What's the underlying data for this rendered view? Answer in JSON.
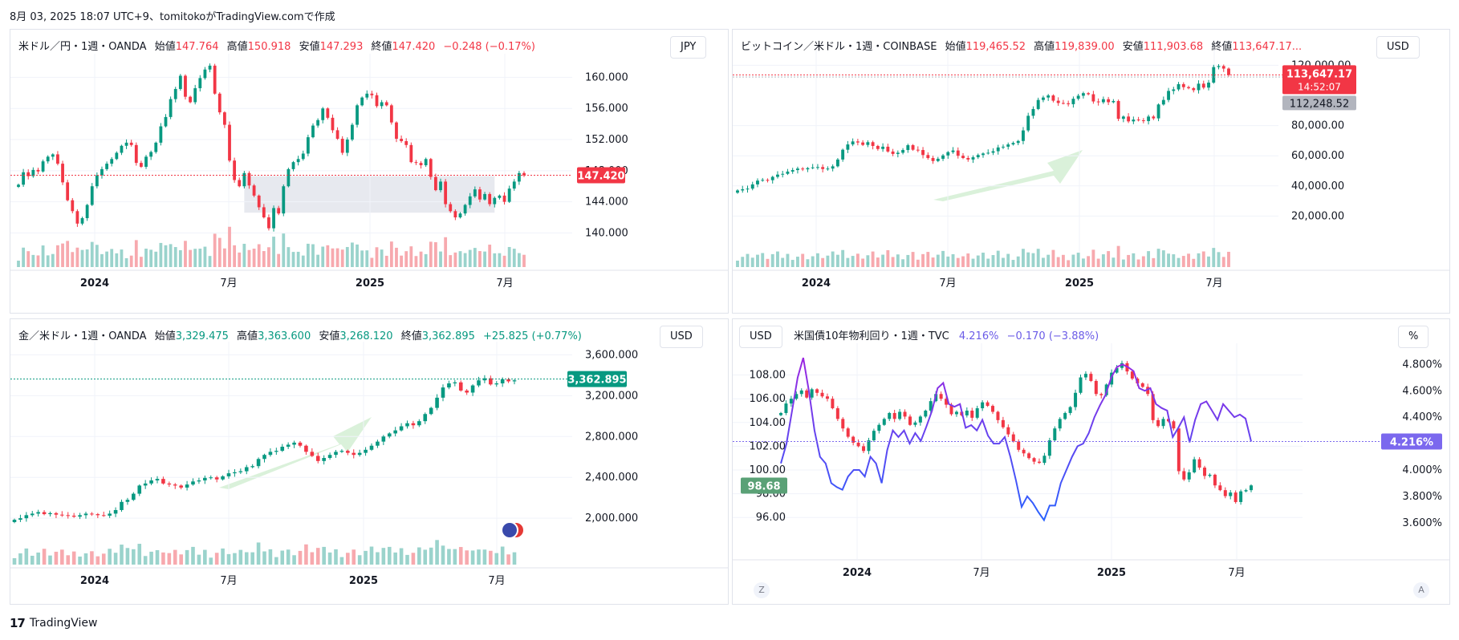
{
  "header": "8月 03, 2025 18:07 UTC+9、tomitokoがTradingView.comで作成",
  "footer": {
    "brand": "TradingView"
  },
  "panels": [
    {
      "id": "usdjpy",
      "title": "米ドル／円・1週・OANDA",
      "open_label": "始値",
      "open": "147.764",
      "high_label": "高値",
      "high": "150.918",
      "low_label": "安値",
      "low": "147.293",
      "close_label": "終値",
      "close": "147.420",
      "change": "−0.248 (−0.17%)",
      "currency": "JPY",
      "last_tag": "147.420"
    },
    {
      "id": "btcusd",
      "title": "ビットコイン／米ドル・1週・COINBASE",
      "open_label": "始値",
      "open": "119,465.52",
      "high_label": "高値",
      "high": "119,839.00",
      "low_label": "安値",
      "low": "111,903.68",
      "close_label": "終値",
      "close": "113,647.17...",
      "change": "",
      "currency": "USD",
      "last_tag": "113,647.17",
      "countdown": "14:52:07",
      "ref_tag": "112,248.52"
    },
    {
      "id": "xauusd",
      "title": "金／米ドル・1週・OANDA",
      "open_label": "始値",
      "open": "3,329.475",
      "high_label": "高値",
      "high": "3,363.600",
      "low_label": "安値",
      "low": "3,268.120",
      "close_label": "終値",
      "close": "3,362.895",
      "change": "+25.825 (+0.77%)",
      "currency": "USD",
      "last_tag": "3,362.895"
    },
    {
      "id": "us10y",
      "title": "米国債10年物利回り・1週・TVC",
      "value": "4.216%",
      "change": "−0.170 (−3.88%)",
      "currency_left": "USD",
      "currency_right": "%",
      "last_tag": "4.216%",
      "left_tag": "98.68",
      "btn_left": "Z",
      "btn_right": "A"
    }
  ],
  "chart_data": [
    {
      "type": "candlestick",
      "title": "米ドル／円・1週・OANDA",
      "x_ticks": [
        "2024",
        "7月",
        "2025",
        "7月"
      ],
      "y_ticks": [
        "160.000",
        "156.000",
        "152.000",
        "148.000",
        "144.000",
        "140.000"
      ],
      "ylim": [
        138.5,
        162
      ],
      "close_series": [
        146.2,
        147.8,
        147.3,
        148.1,
        147.9,
        149.2,
        149.8,
        150.1,
        148.9,
        146.5,
        144.2,
        142.8,
        141.2,
        141.9,
        143.6,
        146.0,
        147.4,
        148.2,
        148.9,
        149.5,
        150.3,
        151.2,
        151.6,
        151.3,
        149.0,
        148.5,
        149.8,
        150.4,
        151.6,
        153.7,
        154.9,
        157.2,
        158.5,
        160.2,
        157.5,
        156.8,
        158.6,
        159.9,
        161.0,
        161.5,
        157.9,
        155.5,
        153.9,
        149.3,
        146.8,
        146.0,
        147.7,
        146.1,
        144.8,
        143.3,
        142.0,
        140.6,
        143.2,
        142.5,
        146.0,
        148.2,
        149.1,
        149.5,
        150.2,
        152.3,
        153.8,
        154.5,
        156.0,
        154.8,
        153.2,
        152.1,
        150.3,
        152.0,
        153.9,
        156.4,
        157.4,
        157.9,
        157.7,
        156.3,
        156.8,
        156.4,
        154.2,
        152.1,
        151.8,
        151.3,
        149.1,
        149.0,
        148.7,
        149.5,
        147.2,
        145.5,
        146.6,
        143.7,
        142.8,
        142.0,
        142.5,
        143.6,
        144.7,
        145.6,
        144.3,
        145.0,
        143.7,
        144.5,
        144.8,
        144.0,
        145.7,
        146.6,
        147.7,
        147.4
      ],
      "box": {
        "from_index": 46,
        "to_index": 97,
        "low": 142.6,
        "high": 147.3
      },
      "last": 147.42,
      "bars_height": true
    },
    {
      "type": "candlestick",
      "title": "ビットコイン／米ドル・1週・COINBASE",
      "x_ticks": [
        "2024",
        "7月",
        "2025",
        "7月"
      ],
      "y_ticks": [
        "120,000.00",
        "80,000.00",
        "60,000.00",
        "40,000.00",
        "20,000.00"
      ],
      "ylim": [
        0,
        125000
      ],
      "close_series": [
        37000,
        37800,
        38200,
        41000,
        43500,
        44000,
        43800,
        46000,
        47500,
        48000,
        49500,
        50500,
        51500,
        51000,
        51800,
        52300,
        52500,
        51200,
        51500,
        53000,
        57500,
        64000,
        67500,
        69500,
        68800,
        67200,
        69000,
        66500,
        64500,
        66000,
        62800,
        61200,
        62000,
        63800,
        67000,
        64000,
        63800,
        60500,
        58500,
        56500,
        58000,
        60200,
        62400,
        63500,
        60000,
        58500,
        57500,
        59000,
        60500,
        61500,
        62000,
        63000,
        65500,
        66000,
        67500,
        68500,
        69800,
        76800,
        86500,
        91000,
        97000,
        98600,
        100000,
        96500,
        95000,
        94800,
        94200,
        97800,
        99800,
        101500,
        100800,
        96000,
        95500,
        97500,
        95500,
        96300,
        84500,
        86000,
        82800,
        84000,
        83500,
        83000,
        86000,
        84800,
        94000,
        97000,
        103000,
        104000,
        107500,
        105500,
        104800,
        103500,
        107800,
        105200,
        108500,
        118800,
        119500,
        117800,
        113600
      ],
      "ref_line": 112248.52,
      "last": 113647.17
    },
    {
      "type": "candlestick",
      "title": "金／米ドル・1週・OANDA",
      "x_ticks": [
        "2024",
        "7月",
        "2025",
        "7月"
      ],
      "y_ticks": [
        "3,600.000",
        "3,200.000",
        "2,800.000",
        "2,400.000",
        "2,000.000"
      ],
      "ylim": [
        1750,
        3650
      ],
      "close_series": [
        1985,
        2000,
        2030,
        2045,
        2060,
        2040,
        2050,
        2035,
        2030,
        2025,
        2015,
        2030,
        2045,
        2040,
        2030,
        2025,
        2045,
        2080,
        2160,
        2180,
        2240,
        2320,
        2340,
        2370,
        2385,
        2340,
        2330,
        2320,
        2300,
        2330,
        2360,
        2370,
        2395,
        2400,
        2380,
        2410,
        2440,
        2450,
        2460,
        2500,
        2510,
        2580,
        2620,
        2650,
        2660,
        2700,
        2720,
        2740,
        2710,
        2650,
        2610,
        2560,
        2590,
        2620,
        2650,
        2660,
        2640,
        2620,
        2640,
        2670,
        2710,
        2750,
        2800,
        2830,
        2860,
        2900,
        2930,
        2910,
        2950,
        3020,
        3080,
        3180,
        3280,
        3320,
        3330,
        3250,
        3230,
        3300,
        3350,
        3370,
        3310,
        3320,
        3360,
        3340,
        3350
      ],
      "last": 3362.895
    },
    {
      "type": "candlestick",
      "title": "米国債10年物利回り・1週・TVC",
      "x_ticks": [
        "2024",
        "7月",
        "2025",
        "7月"
      ],
      "y_ticks_left": [
        "108.00",
        "106.00",
        "104.00",
        "102.00",
        "100.00",
        "98.00",
        "96.00"
      ],
      "y_ticks_right": [
        "4.800%",
        "4.600%",
        "4.400%",
        "4.200%",
        "4.000%",
        "3.800%",
        "3.600%"
      ],
      "ylim_left": [
        95,
        110
      ],
      "ylim_right": [
        3.55,
        4.9
      ],
      "candle_series_left": [
        104.8,
        105.6,
        106.0,
        106.4,
        106.7,
        106.1,
        106.8,
        106.5,
        106.2,
        106.0,
        105.2,
        104.3,
        103.5,
        102.8,
        102.3,
        102.0,
        101.6,
        102.5,
        103.3,
        103.8,
        104.3,
        104.8,
        104.3,
        104.9,
        104.5,
        103.8,
        104.0,
        104.5,
        105.0,
        105.8,
        106.4,
        106.0,
        105.5,
        104.7,
        104.9,
        104.6,
        105.0,
        104.4,
        105.2,
        105.7,
        105.4,
        104.9,
        104.2,
        103.6,
        103.0,
        102.4,
        101.7,
        101.4,
        101.0,
        100.7,
        100.6,
        101.2,
        102.5,
        103.5,
        104.3,
        104.8,
        105.3,
        106.5,
        107.8,
        108.1,
        107.5,
        106.4,
        106.3,
        107.2,
        108.2,
        108.6,
        109.0,
        108.3,
        107.7,
        107.3,
        107.0,
        106.4,
        104.2,
        103.7,
        104.3,
        104.1,
        103.5,
        99.9,
        99.2,
        99.8,
        100.9,
        100.2,
        99.5,
        99.6,
        98.7,
        98.3,
        97.8,
        98.1,
        97.3,
        98.2,
        98.3,
        98.7
      ],
      "yield_series_right": [
        4.05,
        4.2,
        4.45,
        4.7,
        4.85,
        4.6,
        4.3,
        4.1,
        4.05,
        3.9,
        3.87,
        3.85,
        3.95,
        4.0,
        4.0,
        3.95,
        4.1,
        4.05,
        3.9,
        4.15,
        4.3,
        4.25,
        4.3,
        4.2,
        4.28,
        4.22,
        4.33,
        4.45,
        4.62,
        4.66,
        4.5,
        4.48,
        4.5,
        4.32,
        4.34,
        4.3,
        4.38,
        4.26,
        4.2,
        4.2,
        4.25,
        4.1,
        3.92,
        3.72,
        3.8,
        3.75,
        3.68,
        3.62,
        3.73,
        3.73,
        3.9,
        4.0,
        4.1,
        4.18,
        4.2,
        4.28,
        4.4,
        4.49,
        4.57,
        4.7,
        4.78,
        4.8,
        4.78,
        4.75,
        4.62,
        4.6,
        4.62,
        4.5,
        4.47,
        4.45,
        4.25,
        4.32,
        4.4,
        4.21,
        4.38,
        4.5,
        4.52,
        4.45,
        4.38,
        4.5,
        4.45,
        4.4,
        4.42,
        4.39,
        4.216
      ],
      "last_right": 4.216,
      "left_tag_value": 98.68
    }
  ],
  "colors": {
    "up": "#089981",
    "down": "#f23645",
    "up_vol": "#9ad3cc",
    "down_vol": "#f7a9ae",
    "box": "#e3e5ec",
    "arrow": "#d6f0d6",
    "yield_line_blue": "#2962ff",
    "yield_line_purple": "#9c27e0",
    "us10y_tag": "#7b68ee",
    "gold_tag": "#089981",
    "ref_tag": "#b2b5be"
  }
}
